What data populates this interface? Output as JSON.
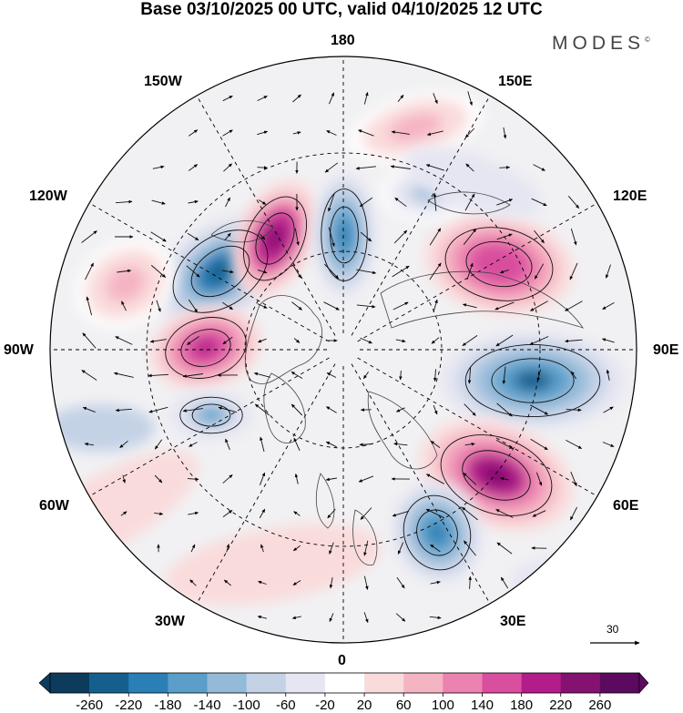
{
  "title": "Base 03/10/2025 00 UTC, valid 04/10/2025 12 UTC",
  "brand": "MODES",
  "brand_mark": "©",
  "longitude_labels": {
    "top": "180",
    "bottom": "0",
    "left": "90W",
    "right": "90E",
    "upper_left_outer": "150W",
    "upper_left_inner": "120W",
    "upper_right_outer": "150E",
    "upper_right_inner": "120E",
    "lower_left_outer": "60W",
    "lower_left_inner": "30W",
    "lower_right_outer": "60E",
    "lower_right_inner": "30E"
  },
  "reference_vector": "30",
  "colorbar": {
    "labels": [
      "-260",
      "-220",
      "-180",
      "-140",
      "-100",
      "-60",
      "-20",
      "20",
      "60",
      "100",
      "140",
      "180",
      "220",
      "260"
    ],
    "colors": [
      "#0c3b5c",
      "#155f8f",
      "#2a7fb6",
      "#5a9ec9",
      "#93bad9",
      "#c4d2e6",
      "#e6e6f2",
      "#ffffff",
      "#fadbdc",
      "#f5b4c2",
      "#ec82b0",
      "#d94e9f",
      "#b31c8a",
      "#851171",
      "#5c0a5f"
    ]
  },
  "anomalies": [
    {
      "kind": "negative",
      "value": -240
    },
    {
      "kind": "positive",
      "value": 250
    },
    {
      "kind": "negative",
      "value": -200
    },
    {
      "kind": "positive",
      "value": 200
    },
    {
      "kind": "negative",
      "value": -160
    },
    {
      "kind": "positive",
      "value": 180
    },
    {
      "kind": "negative",
      "value": -220
    },
    {
      "kind": "positive",
      "value": 240
    },
    {
      "kind": "negative",
      "value": -200
    },
    {
      "kind": "positive",
      "value": 100
    },
    {
      "kind": "negative",
      "value": -100
    },
    {
      "kind": "positive",
      "value": 80
    }
  ]
}
